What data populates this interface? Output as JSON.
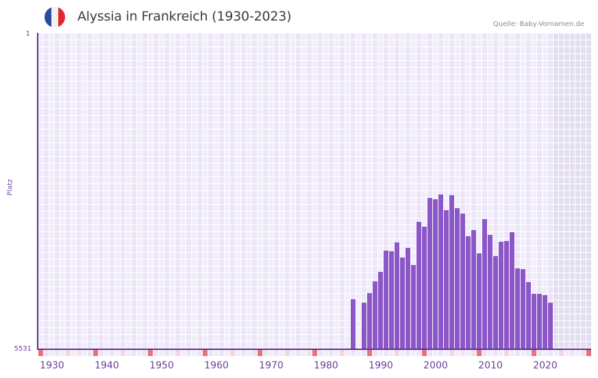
{
  "header": {
    "title": "Alyssia in Frankreich (1930-2023)",
    "source": "Quelle: Baby-Vornamen.de",
    "flag_colors": [
      "#2c4a9e",
      "#f2f2f2",
      "#e0262f"
    ]
  },
  "axis": {
    "y_top_label": "1",
    "y_bottom_label": "5531",
    "y_title": "Platz",
    "x_labels": [
      "1930",
      "1940",
      "1950",
      "1960",
      "1970",
      "1980",
      "1990",
      "2000",
      "2010",
      "2020"
    ]
  },
  "colors": {
    "bar": "#8b57c8",
    "axis": "#5b2d8e",
    "grid_a": "#f1edfb",
    "grid_b": "#ebe5f7",
    "future_shade": "#e4dff0",
    "decade_marker": "#e5737b",
    "half_decade_marker": "#f4d6dd"
  },
  "chart_data": {
    "type": "bar",
    "title": "Alyssia in Frankreich (1930-2023)",
    "xlabel": "",
    "ylabel": "Platz",
    "y_inverted": true,
    "ylim": [
      1,
      5531
    ],
    "x_range": [
      1928,
      2028
    ],
    "grid": true,
    "categories": [
      1985,
      1987,
      1988,
      1989,
      1990,
      1991,
      1992,
      1993,
      1994,
      1995,
      1996,
      1997,
      1998,
      1999,
      2000,
      2001,
      2002,
      2003,
      2004,
      2005,
      2006,
      2007,
      2008,
      2009,
      2010,
      2011,
      2012,
      2013,
      2014,
      2015,
      2016,
      2017,
      2018,
      2019,
      2020,
      2021
    ],
    "values": [
      4653,
      4713,
      4545,
      4341,
      4173,
      3800,
      3812,
      3656,
      3920,
      3752,
      4053,
      3295,
      3379,
      2874,
      2898,
      2814,
      3091,
      2826,
      3055,
      3151,
      3548,
      3439,
      3848,
      3247,
      3524,
      3896,
      3644,
      3632,
      3475,
      4113,
      4125,
      4353,
      4557,
      4557,
      4581,
      4713
    ],
    "x_tick_labels": [
      "1930",
      "1940",
      "1950",
      "1960",
      "1970",
      "1980",
      "1990",
      "2000",
      "2010",
      "2020"
    ],
    "source": "Quelle: Baby-Vornamen.de"
  }
}
